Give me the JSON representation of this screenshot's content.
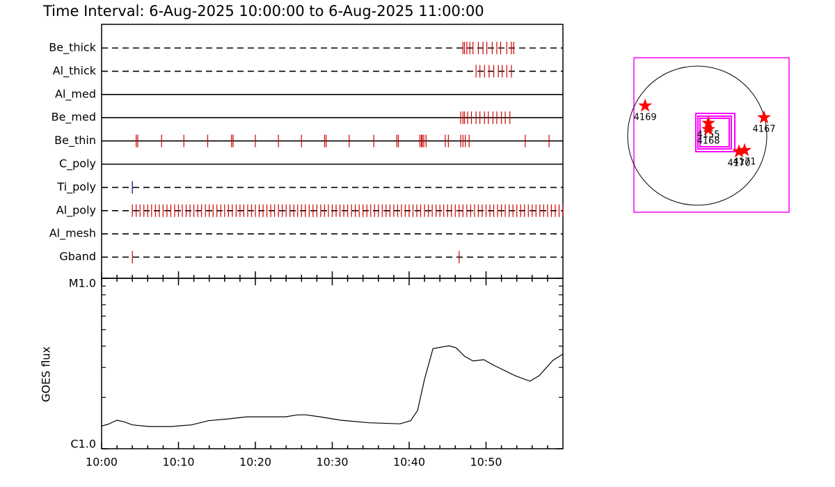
{
  "chart_data": [
    {
      "type": "timeline",
      "title": "Time Interval:  6-Aug-2025 10:00:00 to  6-Aug-2025 11:00:00",
      "xlim": [
        0,
        60
      ],
      "rows": [
        {
          "label": "Be_thick",
          "line": "dashed",
          "color": "#cc0000",
          "events": [
            47.0,
            47.2,
            47.5,
            47.9,
            48.3,
            49.0,
            49.6,
            50.1,
            50.8,
            51.4,
            51.9,
            52.7,
            53.3,
            53.6
          ]
        },
        {
          "label": "Al_thick",
          "line": "dashed",
          "color": "#cc0000",
          "events": [
            48.7,
            49.2,
            49.8,
            50.4,
            51.0,
            51.6,
            52.1,
            52.7,
            53.3
          ]
        },
        {
          "label": "Al_med",
          "line": "solid",
          "color": "#cc0000",
          "events": []
        },
        {
          "label": "Be_med",
          "line": "solid",
          "color": "#cc0000",
          "events": [
            46.7,
            47.0,
            47.2,
            47.6,
            48.1,
            48.7,
            49.2,
            49.8,
            50.3,
            50.9,
            51.4,
            52.0,
            52.5,
            53.1
          ]
        },
        {
          "label": "Be_thin",
          "line": "solid",
          "color": "#cc0000",
          "events": [
            4.5,
            4.7,
            7.8,
            10.7,
            13.8,
            16.9,
            17.1,
            20.0,
            23.0,
            26.0,
            29.0,
            29.2,
            32.2,
            35.4,
            38.4,
            38.6,
            41.4,
            41.6,
            41.7,
            41.9,
            42.2,
            44.7,
            45.1,
            46.7,
            47.0,
            47.3,
            47.8,
            55.1,
            58.2
          ]
        },
        {
          "label": "C_poly",
          "line": "solid",
          "color": "#cc0000",
          "events": []
        },
        {
          "label": "Ti_poly",
          "line": "dashed",
          "color": "#000080",
          "events": [
            4.0
          ]
        },
        {
          "label": "Al_poly",
          "line": "dashed",
          "color": "#cc0000",
          "events": [
            4.0,
            4.5,
            5.0,
            5.5,
            6.0,
            6.5,
            7.0,
            7.5,
            8.0,
            8.5,
            9.0,
            9.5,
            10.0,
            10.5,
            11.0,
            11.5,
            12.0,
            12.5,
            13.0,
            13.5,
            14.0,
            14.5,
            15.0,
            15.5,
            16.0,
            16.5,
            17.0,
            17.5,
            18.0,
            18.5,
            19.0,
            19.5,
            20.0,
            20.5,
            21.0,
            21.5,
            22.0,
            22.5,
            23.0,
            23.5,
            24.0,
            24.5,
            25.0,
            25.5,
            26.0,
            26.5,
            27.0,
            27.5,
            28.0,
            28.5,
            29.0,
            29.5,
            30.0,
            30.5,
            31.0,
            31.5,
            32.0,
            32.5,
            33.0,
            33.5,
            34.0,
            34.5,
            35.0,
            35.5,
            36.0,
            36.5,
            37.0,
            37.5,
            38.0,
            38.5,
            39.0,
            39.5,
            40.0,
            40.5,
            41.0,
            41.5,
            42.0,
            42.5,
            43.0,
            43.5,
            44.0,
            44.5,
            45.0,
            45.5,
            46.0,
            46.5,
            47.0,
            47.5,
            48.0,
            48.5,
            49.0,
            49.5,
            50.0,
            50.5,
            51.0,
            51.5,
            52.0,
            52.5,
            53.0,
            53.5,
            54.0,
            54.5,
            55.0,
            55.5,
            56.0,
            56.5,
            57.0,
            57.5,
            58.0,
            58.5,
            59.0,
            59.5,
            60.0
          ]
        },
        {
          "label": "Al_mesh",
          "line": "dashed",
          "color": "#cc0000",
          "events": []
        },
        {
          "label": "Gband",
          "line": "dashed",
          "color": "#cc0000",
          "events": [
            4.0,
            46.5
          ]
        }
      ]
    },
    {
      "type": "line",
      "ylabel": "GOES flux",
      "log_y": true,
      "color": "#000000",
      "xlim": [
        0,
        60
      ],
      "xticks": [
        {
          "value": 0,
          "label": "10:00"
        },
        {
          "value": 10,
          "label": "10:10"
        },
        {
          "value": 20,
          "label": "10:20"
        },
        {
          "value": 30,
          "label": "10:30"
        },
        {
          "value": 40,
          "label": "10:40"
        },
        {
          "value": 50,
          "label": "10:50"
        }
      ],
      "xminorticks": [
        2,
        4,
        6,
        8,
        12,
        14,
        16,
        18,
        22,
        24,
        26,
        28,
        32,
        34,
        36,
        38,
        42,
        44,
        46,
        48,
        52,
        54,
        56,
        58
      ],
      "ylim": [
        1e-06,
        1e-05
      ],
      "yticks": [
        {
          "value": 1e-06,
          "label": "C1.0"
        },
        {
          "value": 1e-05,
          "label": "M1.0"
        }
      ],
      "yminorticks": [
        2e-06,
        3e-06,
        4e-06,
        5e-06,
        6e-06,
        7e-06,
        8e-06,
        9e-06
      ],
      "x": [
        0,
        0.8,
        2.0,
        2.9,
        4.0,
        6.2,
        9.0,
        11.7,
        13.9,
        16.7,
        18.9,
        21.6,
        23.9,
        25.5,
        26.6,
        28.4,
        31.1,
        34.8,
        38.8,
        40.2,
        41.1,
        42.0,
        43.1,
        45.2,
        46.1,
        47.2,
        48.3,
        49.7,
        51.0,
        53.8,
        55.7,
        56.9,
        58.7,
        60.0
      ],
      "values": [
        1.36e-06,
        1.39e-06,
        1.47e-06,
        1.44e-06,
        1.38e-06,
        1.35e-06,
        1.35e-06,
        1.38e-06,
        1.46e-06,
        1.5e-06,
        1.54e-06,
        1.54e-06,
        1.54e-06,
        1.58e-06,
        1.58e-06,
        1.54e-06,
        1.47e-06,
        1.42e-06,
        1.4e-06,
        1.46e-06,
        1.68e-06,
        2.56e-06,
        3.87e-06,
        4.02e-06,
        3.91e-06,
        3.49e-06,
        3.27e-06,
        3.33e-06,
        3.09e-06,
        2.68e-06,
        2.49e-06,
        2.68e-06,
        3.3e-06,
        3.59e-06
      ]
    },
    {
      "type": "scatter",
      "color": "#ff0000",
      "xlim": [
        -865,
        1254
      ],
      "ylim": [
        -1045,
        1064
      ],
      "labels": [
        "4169",
        "4167",
        "4155",
        "4168",
        "4170",
        "4171"
      ],
      "x": [
        -712,
        912,
        152,
        152,
        570,
        646
      ],
      "values": [
        408,
        247,
        171,
        85,
        -218,
        -200
      ]
    }
  ]
}
